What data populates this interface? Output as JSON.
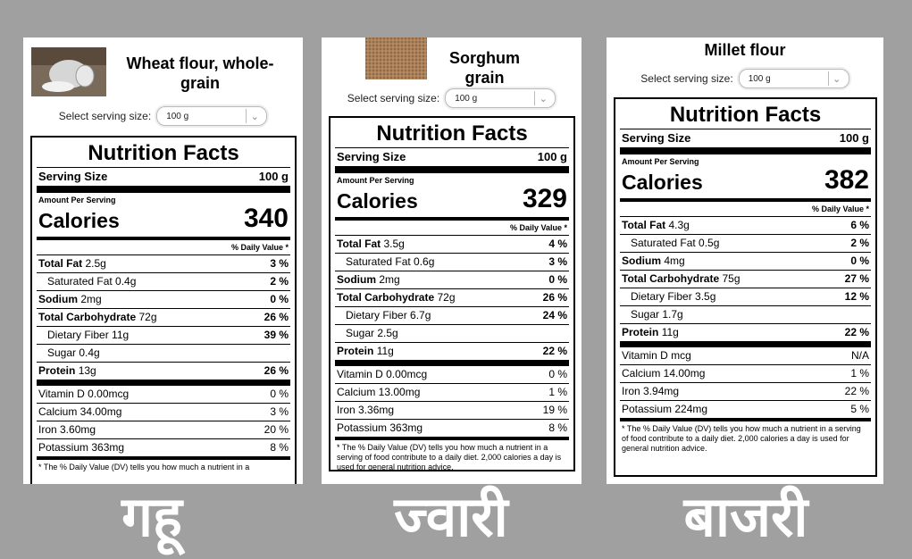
{
  "serving_label": "Select serving size:",
  "nutrition_facts_title": "Nutrition Facts",
  "serving_size_label": "Serving Size",
  "amount_per_serving": "Amount Per Serving",
  "calories_label": "Calories",
  "daily_value_header": "% Daily Value *",
  "footnote": "* The % Daily Value (DV) tells you how much a nutrient in a serving of food contribute to a daily diet. 2,000 calories a day is used for general nutrition advice.",
  "panels": [
    {
      "title": "Wheat flour, whole-grain",
      "serving_option": "100 g",
      "serving_size": "100 g",
      "calories": "340",
      "total_fat": "2.5g",
      "total_fat_dv": "3 %",
      "sat_fat": "0.4g",
      "sat_fat_dv": "2 %",
      "sodium": "2mg",
      "sodium_dv": "0 %",
      "carbs": "72g",
      "carbs_dv": "26 %",
      "fiber": "11g",
      "fiber_dv": "39 %",
      "sugar": "0.4g",
      "protein": "13g",
      "protein_dv": "26 %",
      "vitd": "Vitamin D 0.00mcg",
      "vitd_dv": "0 %",
      "calcium": "Calcium 34.00mg",
      "calcium_dv": "3 %",
      "iron": "Iron 3.60mg",
      "iron_dv": "20 %",
      "potassium": "Potassium 363mg",
      "potassium_dv": "8 %",
      "footnote_partial": "* The % Daily Value (DV) tells you how much a nutrient in a",
      "caption": "गहू"
    },
    {
      "title": "Sorghum grain",
      "serving_option": "100 g",
      "serving_size": "100 g",
      "calories": "329",
      "total_fat": "3.5g",
      "total_fat_dv": "4 %",
      "sat_fat": "0.6g",
      "sat_fat_dv": "3 %",
      "sodium": "2mg",
      "sodium_dv": "0 %",
      "carbs": "72g",
      "carbs_dv": "26 %",
      "fiber": "6.7g",
      "fiber_dv": "24 %",
      "sugar": "2.5g",
      "protein": "11g",
      "protein_dv": "22 %",
      "vitd": "Vitamin D 0.00mcg",
      "vitd_dv": "0 %",
      "calcium": "Calcium 13.00mg",
      "calcium_dv": "1 %",
      "iron": "Iron 3.36mg",
      "iron_dv": "19 %",
      "potassium": "Potassium 363mg",
      "potassium_dv": "8 %",
      "caption": "ज्वारी"
    },
    {
      "title": "Millet flour",
      "serving_option": "100 g",
      "serving_size": "100 g",
      "calories": "382",
      "total_fat": "4.3g",
      "total_fat_dv": "6 %",
      "sat_fat": "0.5g",
      "sat_fat_dv": "2 %",
      "sodium": "4mg",
      "sodium_dv": "0 %",
      "carbs": "75g",
      "carbs_dv": "27 %",
      "fiber": "3.5g",
      "fiber_dv": "12 %",
      "sugar": "1.7g",
      "protein": "11g",
      "protein_dv": "22 %",
      "vitd": "Vitamin D mcg",
      "vitd_dv": "N/A",
      "calcium": "Calcium 14.00mg",
      "calcium_dv": "1 %",
      "iron": "Iron 3.94mg",
      "iron_dv": "22 %",
      "potassium": "Potassium 224mg",
      "potassium_dv": "5 %",
      "caption": "बाजरी"
    }
  ]
}
